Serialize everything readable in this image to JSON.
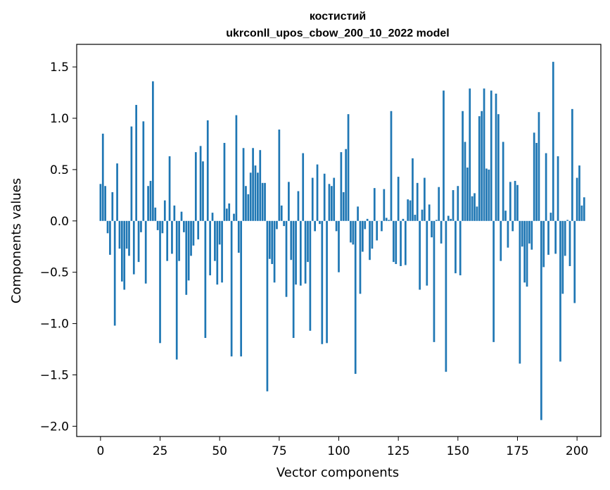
{
  "chart_data": {
    "type": "bar",
    "title": "костистий",
    "subtitle": "ukrconll_upos_cbow_200_10_2022 model",
    "xlabel": "Vector components",
    "ylabel": "Components values",
    "xlim": [
      -10,
      210
    ],
    "ylim": [
      -2.1,
      1.72
    ],
    "x_ticks": [
      0,
      25,
      50,
      75,
      100,
      125,
      150,
      175,
      200
    ],
    "x_tick_labels": [
      "0",
      "25",
      "50",
      "75",
      "100",
      "125",
      "150",
      "175",
      "200"
    ],
    "y_ticks": [
      -2.0,
      -1.5,
      -1.0,
      -0.5,
      0.0,
      0.5,
      1.0,
      1.5
    ],
    "y_tick_labels": [
      "−2.0",
      "−1.5",
      "−1.0",
      "−0.5",
      "0.0",
      "0.5",
      "1.0",
      "1.5"
    ],
    "bar_color": "#1f77b4",
    "grid": false,
    "values": [
      0.36,
      0.85,
      0.34,
      -0.12,
      -0.33,
      0.28,
      -1.02,
      0.56,
      -0.27,
      -0.59,
      -0.67,
      -0.27,
      -0.34,
      0.92,
      -0.52,
      1.13,
      -0.4,
      -0.11,
      0.97,
      -0.61,
      0.34,
      0.39,
      1.36,
      0.13,
      -0.09,
      -1.19,
      -0.12,
      0.2,
      -0.39,
      0.63,
      -0.32,
      0.15,
      -1.35,
      -0.39,
      0.09,
      -0.11,
      -0.72,
      -0.58,
      -0.34,
      -0.24,
      0.67,
      -0.18,
      0.73,
      0.58,
      -1.14,
      0.98,
      -0.53,
      0.08,
      -0.39,
      -0.62,
      -0.23,
      -0.6,
      0.76,
      0.12,
      0.17,
      -1.32,
      0.07,
      1.03,
      -0.31,
      -1.32,
      0.71,
      0.34,
      0.26,
      0.47,
      0.71,
      0.54,
      0.47,
      0.69,
      0.37,
      0.37,
      -1.66,
      -0.37,
      -0.42,
      -0.6,
      -0.08,
      0.89,
      0.15,
      -0.05,
      -0.74,
      0.38,
      -0.38,
      -1.14,
      -0.62,
      0.29,
      -0.63,
      0.66,
      -0.61,
      -0.4,
      -1.07,
      0.42,
      -0.1,
      0.55,
      -0.03,
      -1.2,
      0.46,
      -1.19,
      0.36,
      0.34,
      0.42,
      -0.1,
      -0.5,
      0.67,
      0.28,
      0.7,
      1.04,
      -0.21,
      -0.23,
      -1.49,
      0.14,
      -0.71,
      -0.3,
      -0.08,
      0.02,
      -0.38,
      -0.27,
      0.32,
      -0.19,
      0.0,
      -0.1,
      0.31,
      0.03,
      0.01,
      1.07,
      -0.4,
      -0.42,
      0.43,
      -0.44,
      0.02,
      -0.43,
      0.21,
      0.2,
      0.61,
      0.06,
      0.37,
      -0.67,
      0.11,
      0.42,
      -0.63,
      0.16,
      -0.16,
      -1.18,
      0.01,
      0.33,
      -0.22,
      1.27,
      -1.47,
      0.05,
      0.02,
      0.3,
      -0.51,
      0.34,
      -0.53,
      1.07,
      0.77,
      0.52,
      1.29,
      0.24,
      0.27,
      0.14,
      1.02,
      1.07,
      1.29,
      0.51,
      0.5,
      1.27,
      -1.18,
      1.24,
      1.04,
      -0.39,
      0.77,
      0.1,
      -0.26,
      0.38,
      -0.1,
      0.39,
      0.35,
      -1.39,
      -0.25,
      -0.6,
      -0.64,
      -0.22,
      -0.28,
      0.86,
      0.76,
      1.06,
      -1.94,
      -0.45,
      0.66,
      -0.33,
      0.08,
      1.55,
      -0.32,
      0.63,
      -1.37,
      -0.71,
      -0.34,
      0.01,
      -0.44,
      1.09,
      -0.8,
      0.42,
      0.54,
      0.15,
      0.23
    ]
  }
}
